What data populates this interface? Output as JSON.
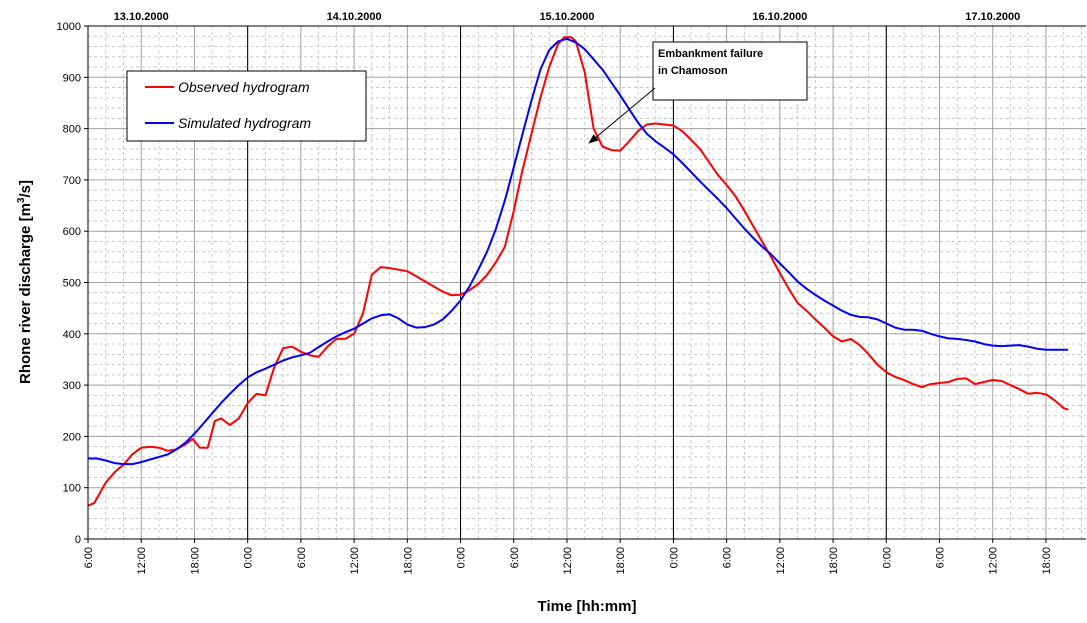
{
  "chart_data": {
    "type": "line",
    "xlabel": "Time [hh:mm]",
    "ylabel_parts": [
      "Rhone river discharge [m",
      "3",
      "/s]"
    ],
    "ylim": [
      0,
      1000
    ],
    "y_ticks": [
      0,
      100,
      200,
      300,
      400,
      500,
      600,
      700,
      800,
      900,
      1000
    ],
    "xlim_hours": [
      6,
      102
    ],
    "x_ticks": [
      {
        "h": 6,
        "label": "6:00"
      },
      {
        "h": 12,
        "label": "12:00"
      },
      {
        "h": 18,
        "label": "18:00"
      },
      {
        "h": 24,
        "label": "0:00"
      },
      {
        "h": 30,
        "label": "6:00"
      },
      {
        "h": 36,
        "label": "12:00"
      },
      {
        "h": 42,
        "label": "18:00"
      },
      {
        "h": 48,
        "label": "0:00"
      },
      {
        "h": 54,
        "label": "6:00"
      },
      {
        "h": 60,
        "label": "12:00"
      },
      {
        "h": 66,
        "label": "18:00"
      },
      {
        "h": 72,
        "label": "0:00"
      },
      {
        "h": 78,
        "label": "6:00"
      },
      {
        "h": 84,
        "label": "12:00"
      },
      {
        "h": 90,
        "label": "18:00"
      },
      {
        "h": 96,
        "label": "0:00"
      },
      {
        "h": 102,
        "label": "6:00"
      },
      {
        "h": 108,
        "label": "12:00"
      },
      {
        "h": 114,
        "label": "18:00"
      }
    ],
    "day_labels": [
      {
        "h": 12,
        "label": "13.10.2000"
      },
      {
        "h": 36,
        "label": "14.10.2000"
      },
      {
        "h": 60,
        "label": "15.10.2000"
      },
      {
        "h": 84,
        "label": "16.10.2000"
      },
      {
        "h": 108,
        "label": "17.10.2000"
      }
    ],
    "grid": true,
    "legend_position": "top-left",
    "series": [
      {
        "name": "Observed hydrogram",
        "color": "#ff0000",
        "points": [
          [
            6,
            65
          ],
          [
            6.7,
            70
          ],
          [
            8,
            110
          ],
          [
            9,
            130
          ],
          [
            10,
            145
          ],
          [
            11,
            165
          ],
          [
            12,
            178
          ],
          [
            13,
            180
          ],
          [
            14,
            178
          ],
          [
            15,
            172
          ],
          [
            16,
            175
          ],
          [
            17,
            185
          ],
          [
            17.8,
            195
          ],
          [
            18.6,
            178
          ],
          [
            19.5,
            178
          ],
          [
            20.3,
            230
          ],
          [
            21,
            235
          ],
          [
            22,
            222
          ],
          [
            23,
            235
          ],
          [
            24,
            265
          ],
          [
            25,
            283
          ],
          [
            26,
            280
          ],
          [
            27,
            335
          ],
          [
            28,
            372
          ],
          [
            29,
            375
          ],
          [
            30,
            365
          ],
          [
            31,
            358
          ],
          [
            32,
            355
          ],
          [
            33,
            375
          ],
          [
            34,
            390
          ],
          [
            35,
            390
          ],
          [
            36,
            400
          ],
          [
            37,
            440
          ],
          [
            38,
            515
          ],
          [
            39,
            530
          ],
          [
            40,
            528
          ],
          [
            41,
            525
          ],
          [
            42,
            522
          ],
          [
            43,
            512
          ],
          [
            44,
            502
          ],
          [
            45,
            492
          ],
          [
            46,
            482
          ],
          [
            47,
            475
          ],
          [
            48,
            476
          ],
          [
            49,
            485
          ],
          [
            50,
            497
          ],
          [
            51,
            515
          ],
          [
            52,
            540
          ],
          [
            53,
            570
          ],
          [
            54,
            640
          ],
          [
            55,
            720
          ],
          [
            56,
            790
          ],
          [
            57,
            860
          ],
          [
            58,
            920
          ],
          [
            59,
            965
          ],
          [
            59.7,
            978
          ],
          [
            60.5,
            978
          ],
          [
            61,
            970
          ],
          [
            62,
            910
          ],
          [
            63,
            800
          ],
          [
            64,
            765
          ],
          [
            65,
            758
          ],
          [
            66,
            757
          ],
          [
            67,
            775
          ],
          [
            68,
            795
          ],
          [
            69,
            808
          ],
          [
            70,
            810
          ],
          [
            71,
            808
          ],
          [
            72,
            806
          ],
          [
            73,
            795
          ],
          [
            74,
            778
          ],
          [
            75,
            760
          ],
          [
            76,
            735
          ],
          [
            77,
            710
          ],
          [
            78,
            690
          ],
          [
            79,
            668
          ],
          [
            80,
            640
          ],
          [
            81,
            610
          ],
          [
            82,
            580
          ],
          [
            83,
            550
          ],
          [
            84,
            518
          ],
          [
            85,
            488
          ],
          [
            86,
            460
          ],
          [
            87,
            445
          ],
          [
            88,
            428
          ],
          [
            89,
            412
          ],
          [
            90,
            395
          ],
          [
            91,
            385
          ],
          [
            92,
            390
          ],
          [
            93,
            378
          ],
          [
            94,
            360
          ],
          [
            95,
            340
          ],
          [
            96,
            325
          ],
          [
            97,
            316
          ],
          [
            98,
            310
          ],
          [
            99,
            302
          ],
          [
            100,
            296
          ],
          [
            101,
            302
          ],
          [
            102,
            304
          ],
          [
            103,
            306
          ],
          [
            104,
            312
          ],
          [
            105,
            313
          ],
          [
            106,
            302
          ],
          [
            107,
            306
          ],
          [
            108,
            310
          ],
          [
            109,
            308
          ],
          [
            110,
            300
          ],
          [
            111,
            292
          ],
          [
            112,
            283
          ],
          [
            113,
            285
          ],
          [
            114,
            282
          ],
          [
            115,
            270
          ],
          [
            116,
            255
          ],
          [
            116.5,
            252
          ]
        ]
      },
      {
        "name": "Simulated hydrogram",
        "color": "#0000ff",
        "points": [
          [
            6,
            157
          ],
          [
            7,
            157
          ],
          [
            8,
            153
          ],
          [
            9,
            148
          ],
          [
            10,
            146
          ],
          [
            11,
            146
          ],
          [
            12,
            150
          ],
          [
            13,
            155
          ],
          [
            14,
            160
          ],
          [
            15,
            165
          ],
          [
            16,
            175
          ],
          [
            17,
            188
          ],
          [
            18,
            205
          ],
          [
            19,
            225
          ],
          [
            20,
            245
          ],
          [
            21,
            265
          ],
          [
            22,
            283
          ],
          [
            23,
            300
          ],
          [
            24,
            315
          ],
          [
            25,
            325
          ],
          [
            26,
            332
          ],
          [
            27,
            340
          ],
          [
            28,
            348
          ],
          [
            29,
            354
          ],
          [
            30,
            358
          ],
          [
            31,
            363
          ],
          [
            32,
            374
          ],
          [
            33,
            385
          ],
          [
            34,
            395
          ],
          [
            35,
            403
          ],
          [
            36,
            410
          ],
          [
            37,
            420
          ],
          [
            38,
            430
          ],
          [
            39,
            436
          ],
          [
            40,
            438
          ],
          [
            41,
            430
          ],
          [
            42,
            418
          ],
          [
            43,
            412
          ],
          [
            44,
            413
          ],
          [
            45,
            418
          ],
          [
            46,
            428
          ],
          [
            47,
            445
          ],
          [
            48,
            465
          ],
          [
            49,
            492
          ],
          [
            50,
            525
          ],
          [
            51,
            560
          ],
          [
            52,
            605
          ],
          [
            53,
            660
          ],
          [
            54,
            725
          ],
          [
            55,
            790
          ],
          [
            56,
            855
          ],
          [
            57,
            915
          ],
          [
            58,
            953
          ],
          [
            59,
            970
          ],
          [
            60,
            975
          ],
          [
            61,
            968
          ],
          [
            62,
            955
          ],
          [
            63,
            935
          ],
          [
            64,
            915
          ],
          [
            65,
            890
          ],
          [
            66,
            865
          ],
          [
            67,
            838
          ],
          [
            68,
            812
          ],
          [
            69,
            790
          ],
          [
            70,
            775
          ],
          [
            71,
            763
          ],
          [
            72,
            750
          ],
          [
            73,
            733
          ],
          [
            74,
            715
          ],
          [
            75,
            697
          ],
          [
            76,
            680
          ],
          [
            77,
            663
          ],
          [
            78,
            645
          ],
          [
            79,
            625
          ],
          [
            80,
            605
          ],
          [
            81,
            587
          ],
          [
            82,
            570
          ],
          [
            83,
            555
          ],
          [
            84,
            537
          ],
          [
            85,
            520
          ],
          [
            86,
            502
          ],
          [
            87,
            488
          ],
          [
            88,
            476
          ],
          [
            89,
            465
          ],
          [
            90,
            455
          ],
          [
            91,
            445
          ],
          [
            92,
            437
          ],
          [
            93,
            433
          ],
          [
            94,
            432
          ],
          [
            95,
            428
          ],
          [
            96,
            420
          ],
          [
            97,
            412
          ],
          [
            98,
            408
          ],
          [
            99,
            408
          ],
          [
            100,
            406
          ],
          [
            101,
            400
          ],
          [
            102,
            395
          ],
          [
            103,
            391
          ],
          [
            104,
            390
          ],
          [
            105,
            388
          ],
          [
            106,
            385
          ],
          [
            107,
            380
          ],
          [
            108,
            377
          ],
          [
            109,
            376
          ],
          [
            110,
            377
          ],
          [
            111,
            378
          ],
          [
            112,
            375
          ],
          [
            113,
            371
          ],
          [
            114,
            369
          ],
          [
            115,
            369
          ],
          [
            116,
            369
          ],
          [
            116.5,
            369
          ]
        ]
      }
    ],
    "annotation": {
      "lines": [
        "Embankment failure",
        "in Chamoson"
      ],
      "arrow_target": {
        "h": 62.5,
        "v": 772
      }
    }
  }
}
